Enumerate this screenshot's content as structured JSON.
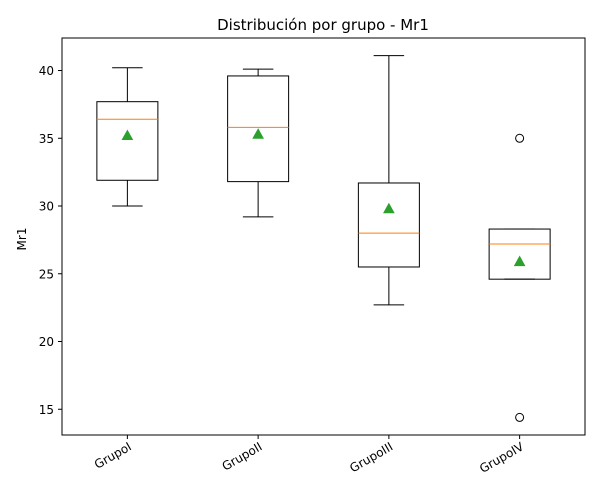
{
  "chart_data": {
    "type": "box",
    "title": "Distribución por grupo - Mr1",
    "xlabel": "",
    "ylabel": "Mr1",
    "ylim": [
      13.1,
      42.4
    ],
    "yticks": [
      15,
      20,
      25,
      30,
      35,
      40
    ],
    "grid": false,
    "categories": [
      "GrupoI",
      "GrupoII",
      "GrupoIII",
      "GrupoIV"
    ],
    "boxes": [
      {
        "whisker_low": 30.0,
        "q1": 31.9,
        "median": 36.4,
        "q3": 37.7,
        "whisker_high": 40.2,
        "mean": 35.2,
        "outliers": []
      },
      {
        "whisker_low": 29.2,
        "q1": 31.8,
        "median": 35.8,
        "q3": 39.6,
        "whisker_high": 40.1,
        "mean": 35.3,
        "outliers": []
      },
      {
        "whisker_low": 22.7,
        "q1": 25.5,
        "median": 28.0,
        "q3": 31.7,
        "whisker_high": 41.1,
        "mean": 29.8,
        "outliers": []
      },
      {
        "whisker_low": 24.6,
        "q1": 24.6,
        "median": 27.2,
        "q3": 28.3,
        "whisker_high": 28.3,
        "mean": 25.9,
        "outliers": [
          35.0,
          14.4
        ]
      }
    ],
    "colors": {
      "box": "#000000",
      "median": "#ff7f0e",
      "mean": "#2ca02c",
      "outlier": "#000000"
    }
  }
}
